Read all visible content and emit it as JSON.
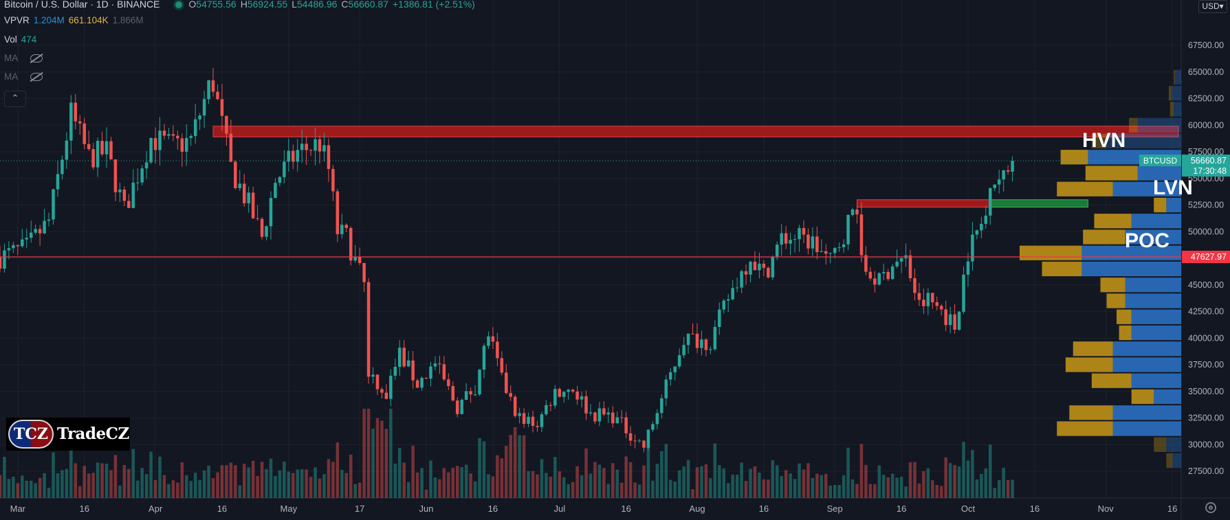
{
  "legend": {
    "symbol": "Bitcoin / U.S. Dollar · 1D · BINANCE",
    "o_label": "O",
    "o": "54755.56",
    "h_label": "H",
    "h": "56924.55",
    "l_label": "L",
    "l": "54486.96",
    "c_label": "C",
    "c": "56660.87",
    "change": "+1386.81 (+2.51%)",
    "vpvr_label": "VPVR",
    "vpvr_up": "1.204M",
    "vpvr_down": "661.104K",
    "vpvr_total": "1.866M",
    "vol_label": "Vol",
    "vol_value": "474",
    "ma1_label": "MA",
    "ma2_label": "MA",
    "collapse_icon": "chevron-up-icon",
    "eye_icon": "eye-off-icon"
  },
  "currency_button": "USD",
  "price_tags": {
    "symbol": "BTCUSD",
    "last": "56660.87",
    "countdown": "17:30:48",
    "poc": "47627.97"
  },
  "annotations": {
    "hvn": "HVN",
    "lvn": "LVN",
    "poc": "POC"
  },
  "logo": {
    "badge": "TCZ",
    "name": "TradeCZ"
  },
  "colors": {
    "background": "#131722",
    "up": "#26a69a",
    "down": "#ef5350",
    "zone_red": "#b71c1c",
    "zone_green": "#1e8b3a",
    "vp_blue": "#2962ff",
    "vp_gold": "#d4a017",
    "poc_line": "#f23645"
  },
  "chart_data": {
    "type": "candlestick",
    "symbol": "BTCUSD",
    "interval": "1D",
    "y_axis_labels": [
      "67500.00",
      "65000.00",
      "62500.00",
      "60000.00",
      "57500.00",
      "55000.00",
      "52500.00",
      "50000.00",
      "47500.00",
      "45000.00",
      "42500.00",
      "40000.00",
      "37500.00",
      "35000.00",
      "32500.00",
      "30000.00",
      "27500.00"
    ],
    "ylim": [
      26000,
      68500
    ],
    "x_axis_labels": [
      "Mar",
      "16",
      "Apr",
      "16",
      "May",
      "17",
      "Jun",
      "16",
      "Jul",
      "16",
      "Aug",
      "16",
      "Sep",
      "16",
      "Oct",
      "16",
      "Nov",
      "16"
    ],
    "x_axis_dates": [
      "2021-03-01",
      "2021-03-16",
      "2021-04-01",
      "2021-04-16",
      "2021-05-01",
      "2021-05-17",
      "2021-06-01",
      "2021-06-16",
      "2021-07-01",
      "2021-07-16",
      "2021-08-01",
      "2021-08-16",
      "2021-09-01",
      "2021-09-16",
      "2021-10-01",
      "2021-10-16",
      "2021-11-01",
      "2021-11-16"
    ],
    "xlim": [
      "2021-02-25",
      "2021-11-18"
    ],
    "price_path": [
      [
        "2021-02-25",
        47600
      ],
      [
        "2021-03-03",
        48500
      ],
      [
        "2021-03-08",
        51000
      ],
      [
        "2021-03-13",
        61000
      ],
      [
        "2021-03-17",
        57000
      ],
      [
        "2021-03-21",
        57500
      ],
      [
        "2021-03-25",
        52000
      ],
      [
        "2021-03-31",
        58800
      ],
      [
        "2021-04-05",
        58000
      ],
      [
        "2021-04-09",
        58600
      ],
      [
        "2021-04-13",
        63500
      ],
      [
        "2021-04-14",
        64000
      ],
      [
        "2021-04-18",
        56000
      ],
      [
        "2021-04-22",
        52500
      ],
      [
        "2021-04-25",
        49500
      ],
      [
        "2021-04-28",
        54800
      ],
      [
        "2021-05-03",
        57500
      ],
      [
        "2021-05-08",
        58300
      ],
      [
        "2021-05-10",
        55800
      ],
      [
        "2021-05-12",
        50000
      ],
      [
        "2021-05-14",
        49500
      ],
      [
        "2021-05-18",
        45000
      ],
      [
        "2021-05-19",
        37000
      ],
      [
        "2021-05-23",
        34700
      ],
      [
        "2021-05-26",
        38600
      ],
      [
        "2021-05-30",
        35700
      ],
      [
        "2021-06-03",
        37600
      ],
      [
        "2021-06-08",
        33500
      ],
      [
        "2021-06-12",
        35500
      ],
      [
        "2021-06-15",
        40500
      ],
      [
        "2021-06-18",
        36000
      ],
      [
        "2021-06-22",
        32500
      ],
      [
        "2021-06-26",
        32000
      ],
      [
        "2021-06-30",
        35000
      ],
      [
        "2021-07-04",
        35300
      ],
      [
        "2021-07-08",
        32900
      ],
      [
        "2021-07-13",
        32700
      ],
      [
        "2021-07-20",
        29800
      ],
      [
        "2021-07-25",
        35400
      ],
      [
        "2021-07-29",
        40000
      ],
      [
        "2021-08-01",
        39900
      ],
      [
        "2021-08-04",
        39700
      ],
      [
        "2021-08-08",
        43800
      ],
      [
        "2021-08-13",
        47800
      ],
      [
        "2021-08-16",
        45900
      ],
      [
        "2021-08-20",
        49300
      ],
      [
        "2021-08-23",
        49500
      ],
      [
        "2021-08-27",
        49000
      ],
      [
        "2021-08-31",
        47100
      ],
      [
        "2021-09-06",
        52700
      ],
      [
        "2021-09-07",
        46800
      ],
      [
        "2021-09-11",
        45200
      ],
      [
        "2021-09-14",
        47100
      ],
      [
        "2021-09-17",
        47300
      ],
      [
        "2021-09-20",
        43000
      ],
      [
        "2021-09-22",
        43600
      ],
      [
        "2021-09-25",
        42700
      ],
      [
        "2021-09-28",
        41000
      ],
      [
        "2021-10-01",
        48200
      ],
      [
        "2021-10-05",
        51500
      ],
      [
        "2021-10-06",
        55300
      ],
      [
        "2021-10-09",
        54900
      ],
      [
        "2021-10-11",
        56660.87
      ]
    ],
    "last_price": 56660.87,
    "poc_price": 47627.97,
    "resistance_zones": [
      {
        "from": "2021-04-14",
        "to": "2021-11-18",
        "top": 59900,
        "bottom": 58900,
        "color": "red"
      },
      {
        "from": "2021-09-06",
        "to": "2021-10-06",
        "top": 53000,
        "bottom": 52300,
        "color": "red"
      },
      {
        "from": "2021-10-06",
        "to": "2021-10-28",
        "top": 53000,
        "bottom": 52300,
        "color": "green"
      }
    ],
    "volume_profile": {
      "bin_size": 1500,
      "bins": [
        {
          "price": 64500,
          "up": 5,
          "down": 1,
          "inside": false
        },
        {
          "price": 63000,
          "up": 8,
          "down": 2,
          "inside": false
        },
        {
          "price": 61500,
          "up": 6,
          "down": 3,
          "inside": false
        },
        {
          "price": 60000,
          "up": 35,
          "down": 7,
          "inside": false
        },
        {
          "price": 58500,
          "up": 60,
          "down": 12,
          "inside": false
        },
        {
          "price": 57000,
          "up": 75,
          "down": 22,
          "inside": true
        },
        {
          "price": 55500,
          "up": 35,
          "down": 42,
          "inside": true
        },
        {
          "price": 54000,
          "up": 55,
          "down": 45,
          "inside": true
        },
        {
          "price": 52500,
          "up": 12,
          "down": 10,
          "inside": true
        },
        {
          "price": 51000,
          "up": 40,
          "down": 30,
          "inside": true
        },
        {
          "price": 49500,
          "up": 45,
          "down": 34,
          "inside": true
        },
        {
          "price": 48000,
          "up": 80,
          "down": 50,
          "inside": true
        },
        {
          "price": 46500,
          "up": 80,
          "down": 32,
          "inside": true
        },
        {
          "price": 45000,
          "up": 45,
          "down": 20,
          "inside": true
        },
        {
          "price": 43500,
          "up": 45,
          "down": 15,
          "inside": true
        },
        {
          "price": 42000,
          "up": 40,
          "down": 12,
          "inside": true
        },
        {
          "price": 40500,
          "up": 40,
          "down": 10,
          "inside": true
        },
        {
          "price": 39000,
          "up": 55,
          "down": 32,
          "inside": true
        },
        {
          "price": 37500,
          "up": 55,
          "down": 38,
          "inside": true
        },
        {
          "price": 36000,
          "up": 40,
          "down": 32,
          "inside": true
        },
        {
          "price": 34500,
          "up": 22,
          "down": 18,
          "inside": true
        },
        {
          "price": 33000,
          "up": 55,
          "down": 35,
          "inside": true
        },
        {
          "price": 31500,
          "up": 55,
          "down": 45,
          "inside": true
        },
        {
          "price": 30000,
          "up": 12,
          "down": 10,
          "inside": false
        },
        {
          "price": 28500,
          "up": 7,
          "down": 5,
          "inside": false
        }
      ]
    }
  }
}
